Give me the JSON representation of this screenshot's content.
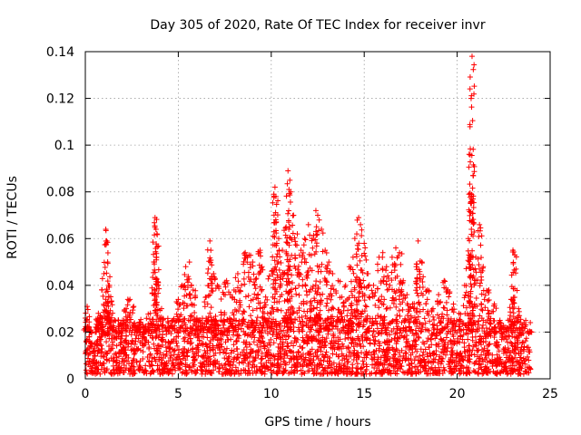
{
  "chart_data": {
    "type": "scatter",
    "title": "Day 305 of 2020, Rate Of TEC Index for receiver invr",
    "xlabel": "GPS time / hours",
    "ylabel": "ROTI / TECUs",
    "xlim": [
      0,
      25
    ],
    "ylim": [
      0,
      0.14
    ],
    "xticks": [
      0,
      5,
      10,
      15,
      20,
      25
    ],
    "yticks": [
      0,
      0.02,
      0.04,
      0.06,
      0.08,
      0.1,
      0.12,
      0.14
    ],
    "xtick_labels": [
      "0",
      "5",
      "10",
      "15",
      "20",
      "25"
    ],
    "ytick_labels": [
      "0",
      "0.02",
      "0.04",
      "0.06",
      "0.08",
      "0.1",
      "0.12",
      "0.14"
    ],
    "grid": true,
    "marker": "+",
    "marker_color": "#ff0000",
    "series": [
      {
        "name": "ROTI",
        "points": [
          [
            0.0,
            0.026
          ],
          [
            0.1,
            0.031
          ],
          [
            0.2,
            0.022
          ],
          [
            0.3,
            0.015
          ],
          [
            0.5,
            0.012
          ],
          [
            0.7,
            0.028
          ],
          [
            0.8,
            0.027
          ],
          [
            1.0,
            0.045
          ],
          [
            1.1,
            0.064
          ],
          [
            1.15,
            0.059
          ],
          [
            1.2,
            0.05
          ],
          [
            1.3,
            0.04
          ],
          [
            1.4,
            0.033
          ],
          [
            1.5,
            0.022
          ],
          [
            1.8,
            0.018
          ],
          [
            2.0,
            0.025
          ],
          [
            2.2,
            0.03
          ],
          [
            2.4,
            0.034
          ],
          [
            2.6,
            0.031
          ],
          [
            2.9,
            0.022
          ],
          [
            3.2,
            0.02
          ],
          [
            3.5,
            0.028
          ],
          [
            3.7,
            0.05
          ],
          [
            3.75,
            0.069
          ],
          [
            3.8,
            0.064
          ],
          [
            3.85,
            0.062
          ],
          [
            3.9,
            0.04
          ],
          [
            4.1,
            0.03
          ],
          [
            4.4,
            0.022
          ],
          [
            4.7,
            0.025
          ],
          [
            5.0,
            0.034
          ],
          [
            5.2,
            0.04
          ],
          [
            5.4,
            0.048
          ],
          [
            5.6,
            0.05
          ],
          [
            5.8,
            0.038
          ],
          [
            6.0,
            0.026
          ],
          [
            6.3,
            0.024
          ],
          [
            6.5,
            0.035
          ],
          [
            6.7,
            0.059
          ],
          [
            6.75,
            0.055
          ],
          [
            6.9,
            0.045
          ],
          [
            7.1,
            0.04
          ],
          [
            7.4,
            0.037
          ],
          [
            7.6,
            0.042
          ],
          [
            7.8,
            0.036
          ],
          [
            8.0,
            0.038
          ],
          [
            8.2,
            0.045
          ],
          [
            8.4,
            0.04
          ],
          [
            8.6,
            0.054
          ],
          [
            8.8,
            0.053
          ],
          [
            9.0,
            0.05
          ],
          [
            9.2,
            0.043
          ],
          [
            9.4,
            0.055
          ],
          [
            9.5,
            0.048
          ],
          [
            9.7,
            0.035
          ],
          [
            9.9,
            0.044
          ],
          [
            10.1,
            0.061
          ],
          [
            10.2,
            0.082
          ],
          [
            10.25,
            0.078
          ],
          [
            10.4,
            0.06
          ],
          [
            10.6,
            0.055
          ],
          [
            10.8,
            0.065
          ],
          [
            10.9,
            0.089
          ],
          [
            11.0,
            0.085
          ],
          [
            11.05,
            0.08
          ],
          [
            11.2,
            0.07
          ],
          [
            11.4,
            0.062
          ],
          [
            11.6,
            0.055
          ],
          [
            11.8,
            0.06
          ],
          [
            12.0,
            0.066
          ],
          [
            12.2,
            0.06
          ],
          [
            12.4,
            0.072
          ],
          [
            12.5,
            0.07
          ],
          [
            12.7,
            0.064
          ],
          [
            12.9,
            0.055
          ],
          [
            13.1,
            0.05
          ],
          [
            13.3,
            0.045
          ],
          [
            13.6,
            0.042
          ],
          [
            13.8,
            0.035
          ],
          [
            14.0,
            0.04
          ],
          [
            14.2,
            0.048
          ],
          [
            14.4,
            0.052
          ],
          [
            14.6,
            0.062
          ],
          [
            14.7,
            0.069
          ],
          [
            14.8,
            0.066
          ],
          [
            15.0,
            0.058
          ],
          [
            15.2,
            0.045
          ],
          [
            15.5,
            0.04
          ],
          [
            15.8,
            0.052
          ],
          [
            16.0,
            0.054
          ],
          [
            16.2,
            0.048
          ],
          [
            16.5,
            0.052
          ],
          [
            16.7,
            0.056
          ],
          [
            16.9,
            0.054
          ],
          [
            17.1,
            0.042
          ],
          [
            17.3,
            0.036
          ],
          [
            17.6,
            0.032
          ],
          [
            17.8,
            0.048
          ],
          [
            17.9,
            0.059
          ],
          [
            18.1,
            0.05
          ],
          [
            18.4,
            0.038
          ],
          [
            18.7,
            0.03
          ],
          [
            19.0,
            0.036
          ],
          [
            19.3,
            0.042
          ],
          [
            19.5,
            0.038
          ],
          [
            19.8,
            0.032
          ],
          [
            20.1,
            0.028
          ],
          [
            20.4,
            0.04
          ],
          [
            20.6,
            0.06
          ],
          [
            20.7,
            0.079
          ],
          [
            20.75,
            0.12
          ],
          [
            20.8,
            0.138
          ],
          [
            20.85,
            0.077
          ],
          [
            21.0,
            0.052
          ],
          [
            21.2,
            0.066
          ],
          [
            21.4,
            0.048
          ],
          [
            21.7,
            0.038
          ],
          [
            22.0,
            0.032
          ],
          [
            22.3,
            0.025
          ],
          [
            22.6,
            0.022
          ],
          [
            22.9,
            0.034
          ],
          [
            23.0,
            0.055
          ],
          [
            23.1,
            0.053
          ],
          [
            23.3,
            0.03
          ],
          [
            23.6,
            0.024
          ],
          [
            23.9,
            0.02
          ]
        ],
        "dense_band": {
          "x_range": [
            0.0,
            23.95
          ],
          "note": "thousands of samples between ~0.002 and ~0.025"
        }
      }
    ]
  }
}
